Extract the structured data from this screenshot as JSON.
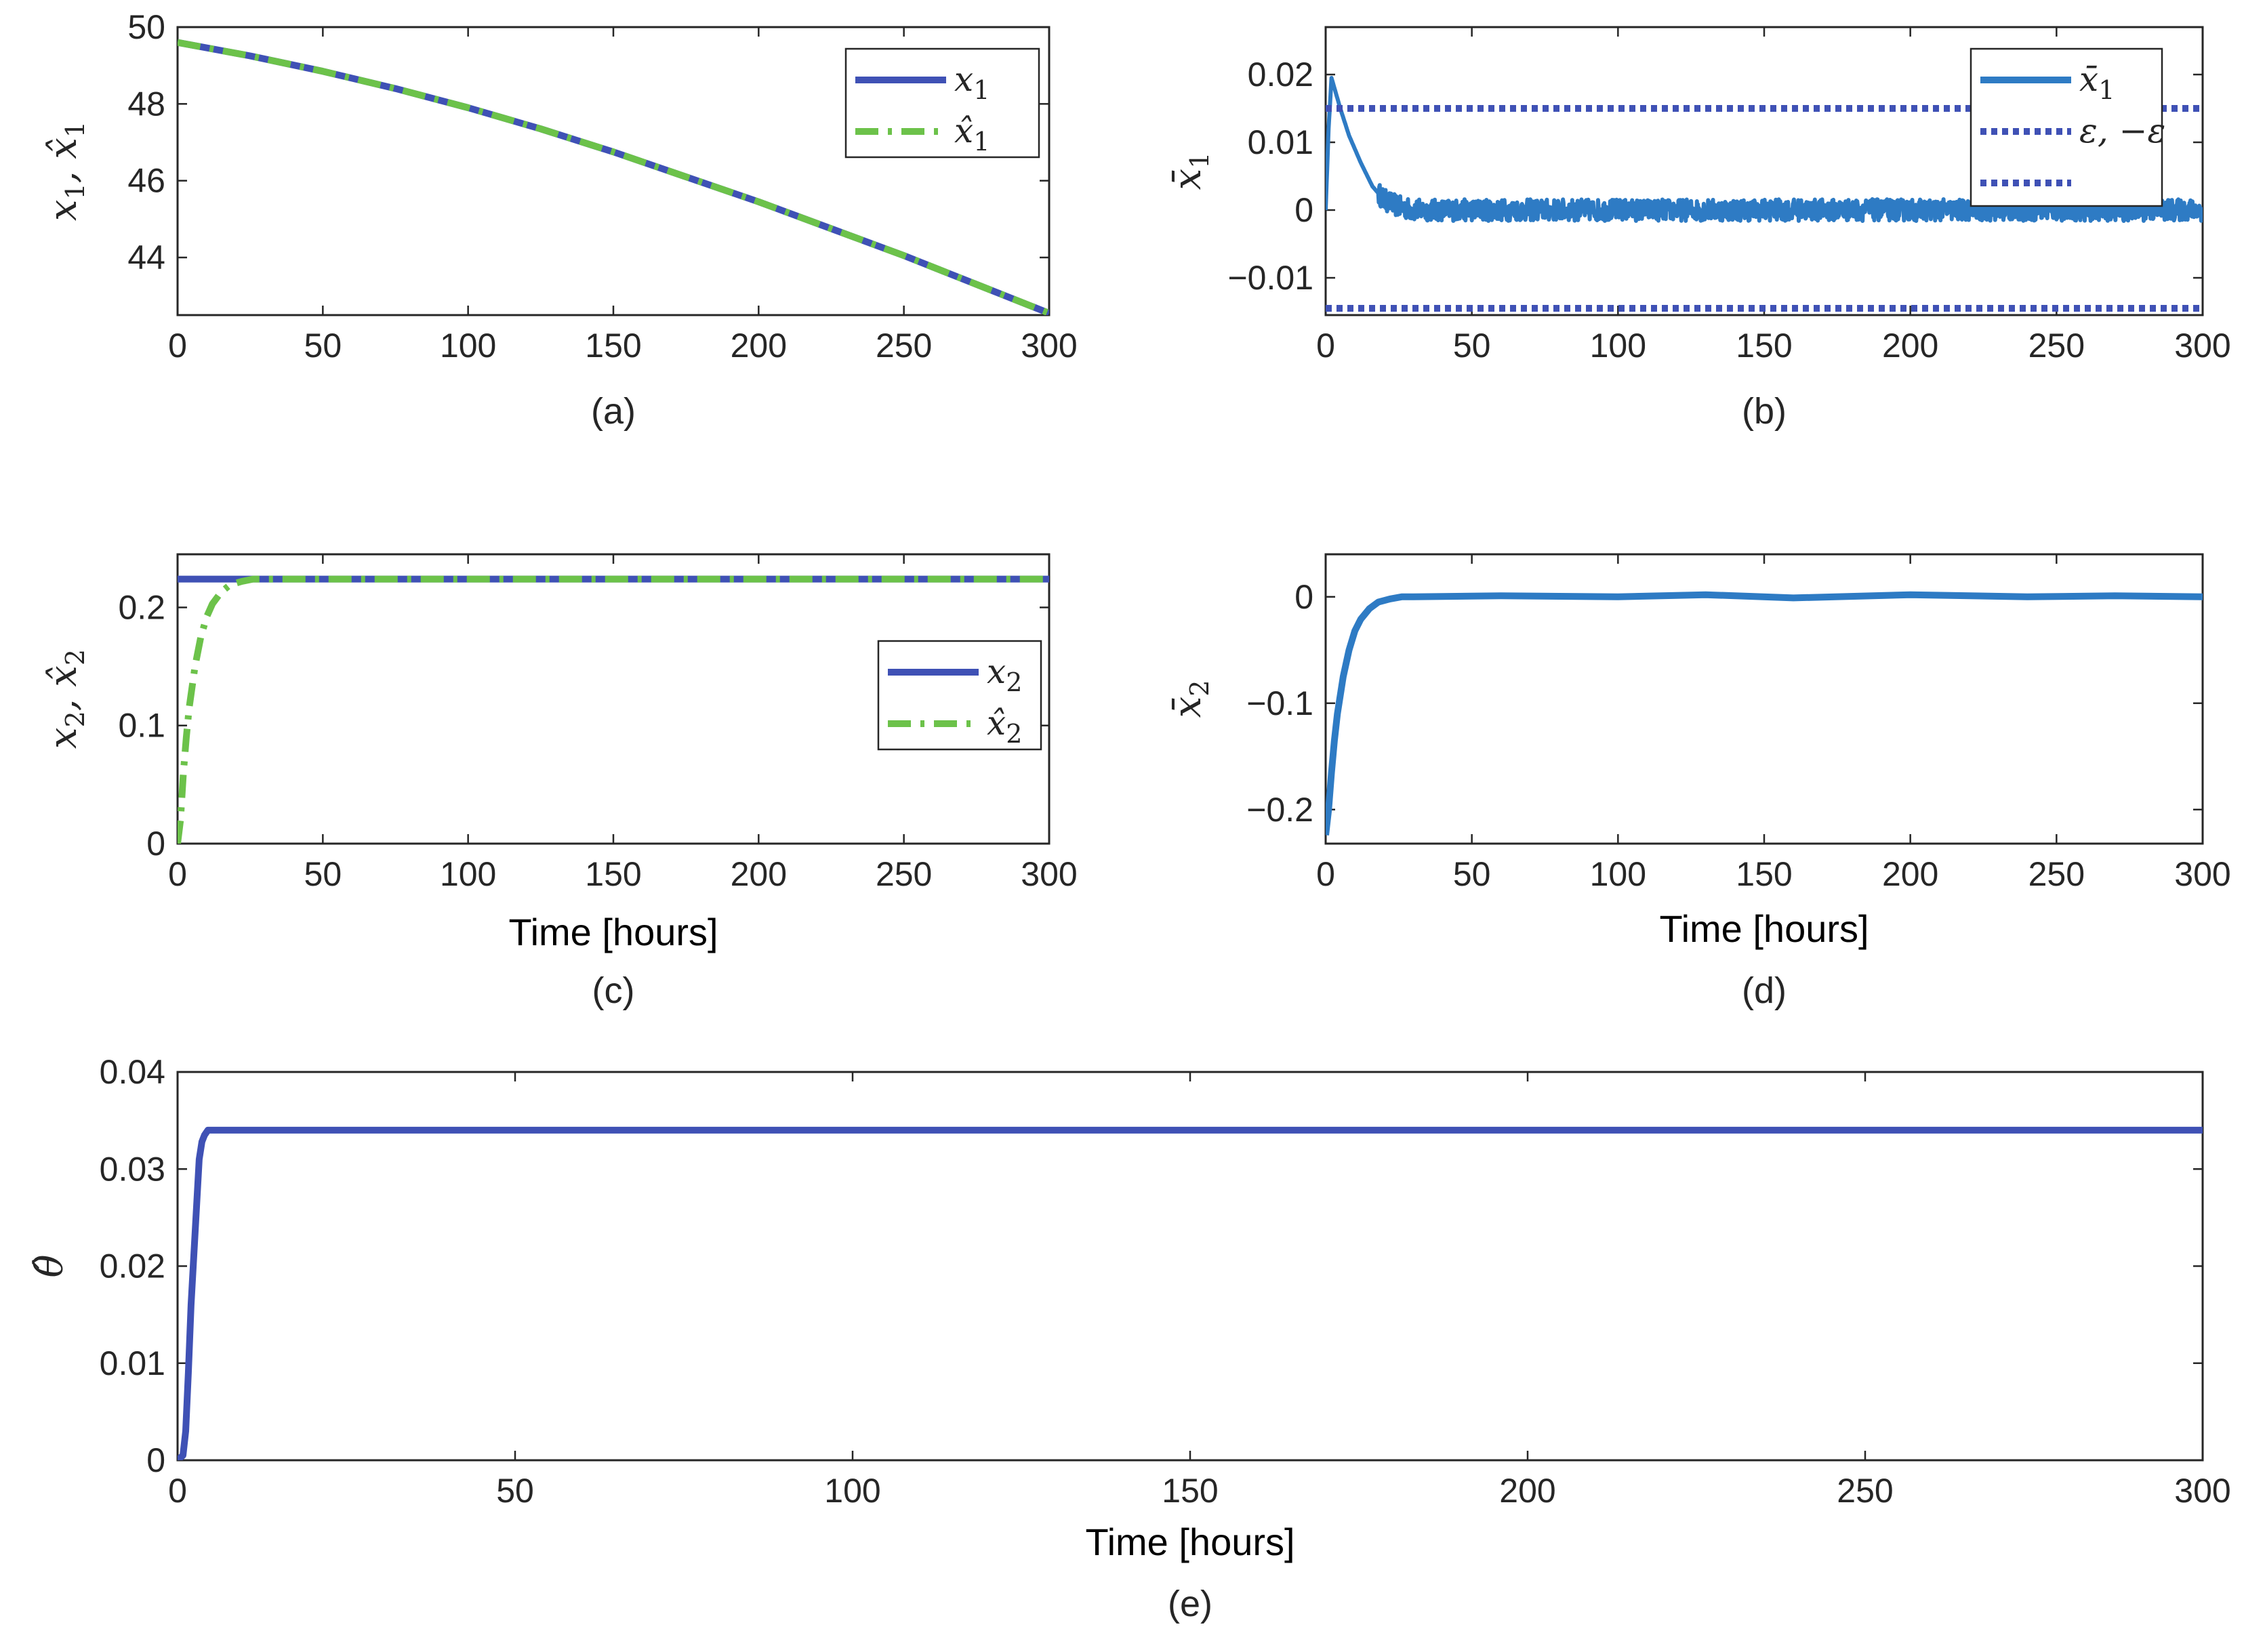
{
  "figure": {
    "colors": {
      "dark_blue": "#3f51b5",
      "green": "#6cc24a",
      "mid_blue": "#2e7bc4",
      "axis": "#262626"
    }
  },
  "chart_data": [
    {
      "id": "a",
      "type": "line",
      "caption": "(a)",
      "xlabel": "",
      "ylabel": {
        "parts": [
          {
            "t": "x",
            "sub": "1"
          },
          {
            "t": ", "
          },
          {
            "t": "x̂",
            "sub": "1"
          }
        ]
      },
      "xlim": [
        0,
        300
      ],
      "ylim": [
        42.5,
        50
      ],
      "xticks": [
        0,
        50,
        100,
        150,
        200,
        250,
        300
      ],
      "xtick_labels": [
        "0",
        "50",
        "100",
        "150",
        "200",
        "250",
        "300"
      ],
      "yticks": [
        44,
        46,
        48,
        50
      ],
      "ytick_labels": [
        "44",
        "46",
        "48",
        "50"
      ],
      "legend": {
        "position": "top-right",
        "entries": [
          {
            "t": "x",
            "sub": "1"
          },
          {
            "t": "x̂",
            "sub": "1"
          }
        ]
      },
      "series": [
        {
          "name": "x1",
          "style": "solid",
          "color": "#3f51b5",
          "x": [
            0,
            25,
            50,
            75,
            100,
            125,
            150,
            175,
            200,
            225,
            250,
            275,
            300
          ],
          "y": [
            49.6,
            49.25,
            48.85,
            48.4,
            47.9,
            47.35,
            46.75,
            46.1,
            45.45,
            44.75,
            44.05,
            43.3,
            42.55
          ]
        },
        {
          "name": "x1_hat",
          "style": "dashdot",
          "color": "#6cc24a",
          "x": [
            0,
            25,
            50,
            75,
            100,
            125,
            150,
            175,
            200,
            225,
            250,
            275,
            300
          ],
          "y": [
            49.6,
            49.25,
            48.85,
            48.4,
            47.9,
            47.35,
            46.75,
            46.1,
            45.45,
            44.75,
            44.05,
            43.3,
            42.55
          ]
        }
      ]
    },
    {
      "id": "b",
      "type": "line",
      "caption": "(b)",
      "xlabel": "",
      "ylabel": {
        "parts": [
          {
            "t": "x̄",
            "sub": "1"
          }
        ]
      },
      "xlim": [
        0,
        300
      ],
      "ylim": [
        -0.0155,
        0.027
      ],
      "xticks": [
        0,
        50,
        100,
        150,
        200,
        250,
        300
      ],
      "xtick_labels": [
        "0",
        "50",
        "100",
        "150",
        "200",
        "250",
        "300"
      ],
      "yticks": [
        -0.01,
        0,
        0.01,
        0.02
      ],
      "ytick_labels": [
        "−0.01",
        "0",
        "0.01",
        "0.02"
      ],
      "legend": {
        "position": "top-right",
        "entries": [
          {
            "t": "x̄",
            "sub": "1"
          },
          {
            "t": "ε, −ε"
          },
          {
            "t": ""
          }
        ]
      },
      "series": [
        {
          "name": "x1_bar",
          "style": "solid-noisy",
          "color": "#2e7bc4",
          "noise": 0.0016,
          "x": [
            0,
            1,
            2,
            3,
            5,
            8,
            12,
            16,
            20,
            25,
            30,
            40,
            300
          ],
          "y": [
            0,
            0.012,
            0.0195,
            0.018,
            0.015,
            0.011,
            0.007,
            0.0035,
            0.0015,
            0.0005,
            0,
            0,
            0
          ]
        },
        {
          "name": "epsilon",
          "style": "dotted",
          "color": "#3f51b5",
          "x": [
            0,
            300
          ],
          "y": [
            0.015,
            0.015
          ]
        },
        {
          "name": "minus_epsilon",
          "style": "dotted",
          "color": "#3f51b5",
          "x": [
            0,
            300
          ],
          "y": [
            -0.0145,
            -0.0145
          ]
        }
      ]
    },
    {
      "id": "c",
      "type": "line",
      "caption": "(c)",
      "xlabel": "Time [hours]",
      "ylabel": {
        "parts": [
          {
            "t": "x",
            "sub": "2"
          },
          {
            "t": ", "
          },
          {
            "t": "x̂",
            "sub": "2"
          }
        ]
      },
      "xlim": [
        0,
        300
      ],
      "ylim": [
        0,
        0.245
      ],
      "xticks": [
        0,
        50,
        100,
        150,
        200,
        250,
        300
      ],
      "xtick_labels": [
        "0",
        "50",
        "100",
        "150",
        "200",
        "250",
        "300"
      ],
      "yticks": [
        0,
        0.1,
        0.2
      ],
      "ytick_labels": [
        "0",
        "0.1",
        "0.2"
      ],
      "legend": {
        "position": "right",
        "entries": [
          {
            "t": "x",
            "sub": "2"
          },
          {
            "t": "x̂",
            "sub": "2"
          }
        ]
      },
      "series": [
        {
          "name": "x2",
          "style": "solid",
          "color": "#3f51b5",
          "x": [
            0,
            300
          ],
          "y": [
            0.224,
            0.224
          ]
        },
        {
          "name": "x2_hat",
          "style": "dashdot",
          "color": "#6cc24a",
          "x": [
            0,
            1,
            2,
            3,
            4,
            6,
            8,
            10,
            12,
            15,
            18,
            22,
            26,
            30,
            300
          ],
          "y": [
            0,
            0.02,
            0.06,
            0.09,
            0.115,
            0.15,
            0.175,
            0.192,
            0.203,
            0.213,
            0.219,
            0.222,
            0.224,
            0.224,
            0.224
          ]
        }
      ]
    },
    {
      "id": "d",
      "type": "line",
      "caption": "(d)",
      "xlabel": "Time [hours]",
      "ylabel": {
        "parts": [
          {
            "t": "x̄",
            "sub": "2"
          }
        ]
      },
      "xlim": [
        0,
        300
      ],
      "ylim": [
        -0.232,
        0.04
      ],
      "xticks": [
        0,
        50,
        100,
        150,
        200,
        250,
        300
      ],
      "xtick_labels": [
        "0",
        "50",
        "100",
        "150",
        "200",
        "250",
        "300"
      ],
      "yticks": [
        -0.2,
        -0.1,
        0
      ],
      "ytick_labels": [
        "−0.2",
        "−0.1",
        "0"
      ],
      "legend": null,
      "series": [
        {
          "name": "x2_bar",
          "style": "solid",
          "color": "#2e7bc4",
          "x": [
            0,
            1,
            2,
            3,
            4,
            6,
            8,
            10,
            12,
            15,
            18,
            22,
            26,
            30,
            60,
            100,
            130,
            160,
            200,
            240,
            270,
            300
          ],
          "y": [
            -0.224,
            -0.2,
            -0.165,
            -0.135,
            -0.11,
            -0.075,
            -0.05,
            -0.032,
            -0.021,
            -0.011,
            -0.005,
            -0.002,
            0,
            0,
            0.001,
            0,
            0.002,
            -0.001,
            0.002,
            0,
            0.001,
            0
          ]
        }
      ]
    },
    {
      "id": "e",
      "type": "line",
      "caption": "(e)",
      "xlabel": "Time [hours]",
      "ylabel": {
        "parts": [
          {
            "t": "θ̂"
          }
        ]
      },
      "xlim": [
        0,
        300
      ],
      "ylim": [
        0,
        0.04
      ],
      "xticks": [
        0,
        50,
        100,
        150,
        200,
        250,
        300
      ],
      "xtick_labels": [
        "0",
        "50",
        "100",
        "150",
        "200",
        "250",
        "300"
      ],
      "yticks": [
        0,
        0.01,
        0.02,
        0.03,
        0.04
      ],
      "ytick_labels": [
        "0",
        "0.01",
        "0.02",
        "0.03",
        "0.04"
      ],
      "legend": null,
      "series": [
        {
          "name": "theta_hat",
          "style": "solid",
          "color": "#3f51b5",
          "x": [
            0,
            0.8,
            1.2,
            1.6,
            2,
            2.4,
            2.8,
            3.2,
            3.6,
            4,
            4.5,
            300
          ],
          "y": [
            0,
            0.0005,
            0.003,
            0.009,
            0.016,
            0.021,
            0.026,
            0.031,
            0.0328,
            0.0335,
            0.034,
            0.034
          ]
        }
      ]
    }
  ]
}
